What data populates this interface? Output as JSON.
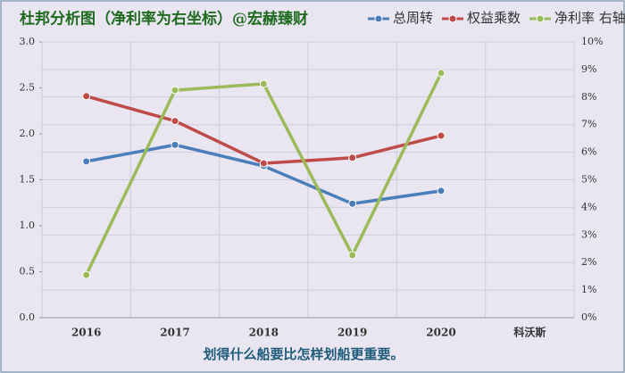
{
  "chart_data": {
    "type": "line",
    "title": "杜邦分析图（净利率为右坐标）@宏赫臻财",
    "annotation": "划得什么船要比怎样划船更重要。",
    "categories": [
      "2016",
      "2017",
      "2018",
      "2019",
      "2020",
      "科沃斯"
    ],
    "series": [
      {
        "name": "总周转",
        "color": "#4a7ebb",
        "values": [
          1.7,
          1.88,
          1.65,
          1.24,
          1.38,
          null
        ]
      },
      {
        "name": "权益乘数",
        "color": "#be4b48",
        "values": [
          2.41,
          2.14,
          1.68,
          1.74,
          1.98,
          null
        ]
      },
      {
        "name": "净利率 右轴",
        "color": "#9bbb59",
        "axis": "y2",
        "values": [
          1.55,
          8.25,
          8.48,
          2.27,
          8.87,
          null
        ]
      }
    ],
    "ylim": [
      0,
      3
    ],
    "yticks": [
      {
        "value": 0,
        "label": "0.0"
      },
      0.5,
      {
        "value": 1,
        "label": "1.0"
      },
      1.5,
      {
        "value": 2,
        "label": "2.0"
      },
      2.5,
      {
        "value": 3,
        "label": "3.0"
      }
    ],
    "y2lim": [
      0,
      10
    ],
    "y2ticks": [
      {
        "value": 0,
        "label": "0%"
      },
      {
        "value": 1,
        "label": "1%"
      },
      {
        "value": 2,
        "label": "2%"
      },
      {
        "value": 3,
        "label": "3%"
      },
      {
        "value": 4,
        "label": "4%"
      },
      {
        "value": 5,
        "label": "5%"
      },
      {
        "value": 6,
        "label": "6%"
      },
      {
        "value": 7,
        "label": "7%"
      },
      {
        "value": 8,
        "label": "8%"
      },
      {
        "value": 9,
        "label": "9%"
      },
      {
        "value": 10,
        "label": "10%"
      }
    ],
    "grid": true,
    "legend": "top-right"
  }
}
